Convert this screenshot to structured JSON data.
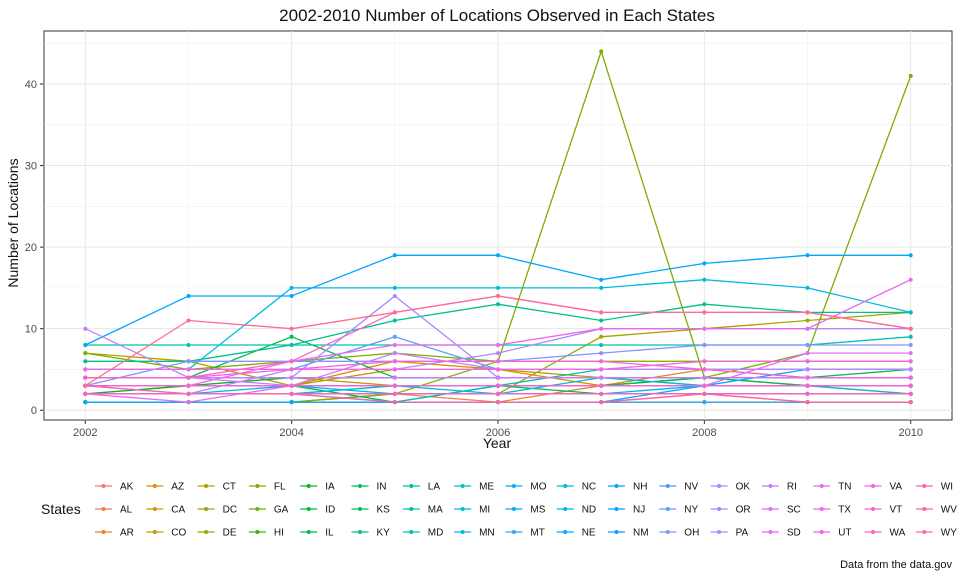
{
  "chart_data": {
    "type": "line",
    "title": "2002-2010 Number of Locations Observed in Each States",
    "xlabel": "Year",
    "ylabel": "Number of Locations",
    "caption": "Data from the data.gov",
    "legend_title": "States",
    "legend_position": "bottom",
    "grid": true,
    "xlim": [
      2002,
      2010
    ],
    "ylim": [
      0,
      45
    ],
    "x_ticks": [
      2002,
      2004,
      2006,
      2008,
      2010
    ],
    "y_ticks": [
      0,
      10,
      20,
      30,
      40
    ],
    "x": [
      2002,
      2003,
      2004,
      2005,
      2006,
      2007,
      2008,
      2009,
      2010
    ],
    "series": [
      {
        "name": "AK",
        "color": "#F8766D",
        "values": [
          null,
          null,
          1,
          1,
          1,
          1,
          1,
          1,
          1
        ]
      },
      {
        "name": "AL",
        "color": "#F27D53",
        "values": [
          1,
          1,
          1,
          2,
          1,
          1,
          2,
          1,
          1
        ]
      },
      {
        "name": "AR",
        "color": "#EA8331",
        "values": [
          1,
          1,
          1,
          1,
          1,
          3,
          4,
          3,
          3
        ]
      },
      {
        "name": "AZ",
        "color": "#E08B00",
        "values": [
          2,
          3,
          3,
          6,
          5,
          3,
          5,
          4,
          4
        ]
      },
      {
        "name": "CA",
        "color": "#D39200",
        "values": [
          1,
          1,
          1,
          1,
          1,
          1,
          1,
          1,
          1
        ]
      },
      {
        "name": "CO",
        "color": "#C49A00",
        "values": [
          4,
          4,
          4,
          3,
          3,
          3,
          4,
          3,
          3
        ]
      },
      {
        "name": "CT",
        "color": "#B3A000",
        "values": [
          7,
          6,
          3,
          5,
          5,
          4,
          3,
          3,
          2
        ]
      },
      {
        "name": "DC",
        "color": "#A3A500",
        "values": [
          1,
          1,
          1,
          2,
          2,
          9,
          10,
          11,
          12
        ]
      },
      {
        "name": "DE",
        "color": "#8EAB00",
        "values": [
          1,
          1,
          1,
          2,
          6,
          6,
          6,
          6,
          6
        ]
      },
      {
        "name": "FL",
        "color": "#7CAE00",
        "values": [
          7,
          5,
          6,
          7,
          6,
          44,
          4,
          7,
          41
        ]
      },
      {
        "name": "GA",
        "color": "#66B500",
        "values": [
          3,
          3,
          3,
          3,
          3,
          3,
          3,
          3,
          3
        ]
      },
      {
        "name": "HI",
        "color": "#39B600",
        "values": [
          1,
          1,
          1,
          1,
          1,
          1,
          1,
          1,
          1
        ]
      },
      {
        "name": "IA",
        "color": "#00B81F",
        "values": [
          2,
          3,
          4,
          4,
          4,
          4,
          4,
          4,
          4
        ]
      },
      {
        "name": "ID",
        "color": "#00BA38",
        "values": [
          2,
          2,
          2,
          3,
          3,
          2,
          2,
          2,
          2
        ]
      },
      {
        "name": "IL",
        "color": "#00BB4E",
        "values": [
          4,
          4,
          9,
          4,
          4,
          4,
          4,
          4,
          4
        ]
      },
      {
        "name": "IN",
        "color": "#00BC5D",
        "values": [
          3,
          3,
          3,
          1,
          3,
          3,
          4,
          4,
          5
        ]
      },
      {
        "name": "KS",
        "color": "#00BE67",
        "values": [
          3,
          3,
          3,
          3,
          3,
          3,
          4,
          3,
          3
        ]
      },
      {
        "name": "KY",
        "color": "#00C08B",
        "values": [
          6,
          6,
          8,
          11,
          13,
          11,
          13,
          12,
          12
        ]
      },
      {
        "name": "LA",
        "color": "#00C19F",
        "values": [
          3,
          3,
          3,
          3,
          3,
          5,
          5,
          5,
          5
        ]
      },
      {
        "name": "MA",
        "color": "#00C1AA",
        "values": [
          8,
          8,
          8,
          8,
          8,
          8,
          8,
          8,
          9
        ]
      },
      {
        "name": "MD",
        "color": "#00C0BA",
        "values": [
          4,
          4,
          4,
          4,
          4,
          4,
          4,
          4,
          4
        ]
      },
      {
        "name": "ME",
        "color": "#00BFC4",
        "values": [
          2,
          2,
          2,
          1,
          3,
          3,
          3,
          3,
          3
        ]
      },
      {
        "name": "MI",
        "color": "#00BCD8",
        "values": [
          2,
          2,
          2,
          3,
          2,
          4,
          3,
          3,
          2
        ]
      },
      {
        "name": "MN",
        "color": "#00B8E7",
        "values": [
          2,
          2,
          2,
          2,
          2,
          2,
          2,
          2,
          2
        ]
      },
      {
        "name": "MO",
        "color": "#00B2F3",
        "values": [
          3,
          3,
          3,
          3,
          3,
          3,
          3,
          3,
          3
        ]
      },
      {
        "name": "MS",
        "color": "#00ABFD",
        "values": [
          2,
          2,
          2,
          2,
          2,
          2,
          2,
          2,
          2
        ]
      },
      {
        "name": "MT",
        "color": "#35A2FF",
        "values": [
          1,
          1,
          1,
          1,
          1,
          1,
          1,
          1,
          1
        ]
      },
      {
        "name": "NC",
        "color": "#00BADE",
        "values": [
          5,
          5,
          15,
          15,
          15,
          15,
          16,
          15,
          12
        ]
      },
      {
        "name": "ND",
        "color": "#00B4EF",
        "values": [
          3,
          2,
          3,
          2,
          2,
          2,
          3,
          3,
          3
        ]
      },
      {
        "name": "NE",
        "color": "#00AEFA",
        "values": [
          3,
          3,
          3,
          3,
          3,
          3,
          3,
          3,
          3
        ]
      },
      {
        "name": "NH",
        "color": "#00A9FF",
        "values": [
          1,
          1,
          1,
          1,
          1,
          1,
          3,
          5,
          5
        ]
      },
      {
        "name": "NJ",
        "color": "#00A5FF",
        "values": [
          8,
          14,
          14,
          19,
          19,
          16,
          18,
          19,
          19
        ]
      },
      {
        "name": "NM",
        "color": "#139EFF",
        "values": [
          3,
          3,
          3,
          3,
          3,
          3,
          3,
          3,
          3
        ]
      },
      {
        "name": "NV",
        "color": "#4B98FF",
        "values": [
          4,
          4,
          4,
          4,
          4,
          4,
          4,
          4,
          4
        ]
      },
      {
        "name": "NY",
        "color": "#5E9BFF",
        "values": [
          5,
          5,
          5,
          9,
          5,
          5,
          5,
          5,
          5
        ]
      },
      {
        "name": "OH",
        "color": "#8294FF",
        "values": [
          3,
          6,
          6,
          6,
          6,
          7,
          8,
          8,
          8
        ]
      },
      {
        "name": "OK",
        "color": "#9590FF",
        "values": [
          3,
          3,
          3,
          3,
          3,
          3,
          3,
          3,
          3
        ]
      },
      {
        "name": "OR",
        "color": "#A58AFF",
        "values": [
          4,
          4,
          4,
          14,
          4,
          4,
          4,
          4,
          4
        ]
      },
      {
        "name": "PA",
        "color": "#B385FF",
        "values": [
          2,
          2,
          5,
          5,
          7,
          10,
          10,
          10,
          10
        ]
      },
      {
        "name": "RI",
        "color": "#C77CFF",
        "values": [
          10,
          4,
          3,
          7,
          5,
          5,
          5,
          5,
          5
        ]
      },
      {
        "name": "SC",
        "color": "#D575FE",
        "values": [
          4,
          4,
          4,
          4,
          4,
          4,
          4,
          4,
          4
        ]
      },
      {
        "name": "SD",
        "color": "#E06FF6",
        "values": [
          2,
          2,
          2,
          2,
          2,
          2,
          2,
          2,
          2
        ]
      },
      {
        "name": "TN",
        "color": "#E76BF3",
        "values": [
          2,
          1,
          3,
          3,
          3,
          3,
          3,
          7,
          7
        ]
      },
      {
        "name": "TX",
        "color": "#ED68ED",
        "values": [
          3,
          3,
          6,
          8,
          8,
          10,
          10,
          10,
          16
        ]
      },
      {
        "name": "UT",
        "color": "#F365E5",
        "values": [
          5,
          5,
          5,
          5,
          5,
          5,
          6,
          6,
          6
        ]
      },
      {
        "name": "VA",
        "color": "#F763DB",
        "values": [
          4,
          4,
          5,
          6,
          6,
          6,
          5,
          4,
          4
        ]
      },
      {
        "name": "VT",
        "color": "#FA62D0",
        "values": [
          3,
          3,
          3,
          3,
          3,
          3,
          3,
          3,
          3
        ]
      },
      {
        "name": "WA",
        "color": "#FC61C4",
        "values": [
          4,
          4,
          6,
          12,
          14,
          12,
          12,
          12,
          10
        ]
      },
      {
        "name": "WI",
        "color": "#FE61B7",
        "values": [
          2,
          2,
          2,
          2,
          2,
          2,
          2,
          2,
          2
        ]
      },
      {
        "name": "WV",
        "color": "#FF63A9",
        "values": [
          3,
          2,
          2,
          1,
          1,
          1,
          2,
          1,
          1
        ]
      },
      {
        "name": "WY",
        "color": "#FF6C91",
        "values": [
          3,
          11,
          10,
          12,
          14,
          12,
          12,
          12,
          10
        ]
      }
    ]
  }
}
